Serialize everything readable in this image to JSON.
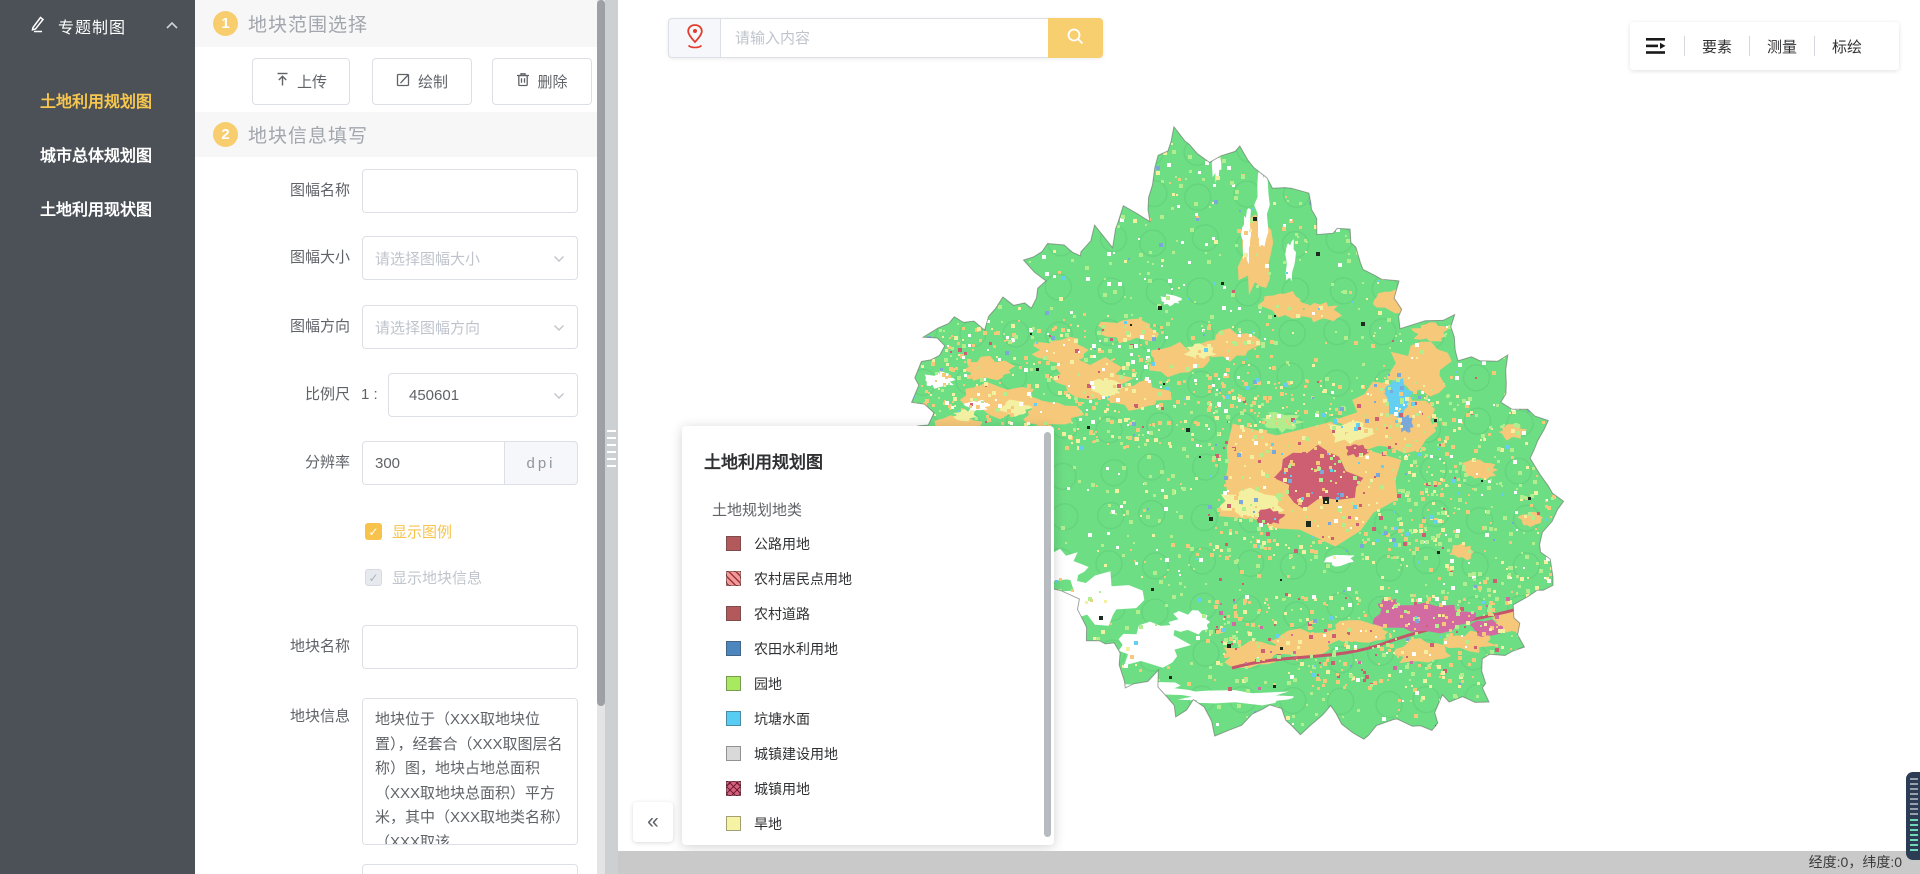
{
  "sidebar": {
    "title": "专题制图",
    "items": [
      {
        "label": "土地利用规划图",
        "active": true
      },
      {
        "label": "城市总体规划图",
        "active": false
      },
      {
        "label": "土地利用现状图",
        "active": false
      }
    ]
  },
  "panel": {
    "sections": [
      {
        "number": "1",
        "title": "地块范围选择"
      },
      {
        "number": "2",
        "title": "地块信息填写"
      }
    ],
    "buttons": {
      "upload": "上传",
      "draw": "绘制",
      "delete": "删除"
    },
    "fields": {
      "sheet_name_label": "图幅名称",
      "sheet_size_label": "图幅大小",
      "sheet_size_placeholder": "请选择图幅大小",
      "sheet_orientation_label": "图幅方向",
      "sheet_orientation_placeholder": "请选择图幅方向",
      "scale_label": "比例尺",
      "scale_prefix": "1 :",
      "scale_value": "450601",
      "resolution_label": "分辨率",
      "resolution_value": "300",
      "resolution_unit": "dpi",
      "show_legend_label": "显示图例",
      "show_parcel_info_label": "显示地块信息",
      "parcel_name_label": "地块名称",
      "parcel_info_label": "地块信息",
      "parcel_info_value": "地块位于（XXX取地块位置），经套合（XXX取图层名称）图，地块占地总面积（XXX取地块总面积）平方米，其中（XXX取地类名称）（XXX取该"
    }
  },
  "map": {
    "search": {
      "placeholder": "请输入内容"
    },
    "toolbar": [
      "要素",
      "测量",
      "标绘"
    ],
    "legend": {
      "title": "土地利用规划图",
      "subtitle": "土地规划地类",
      "items": [
        {
          "label": "公路用地",
          "color": "#b3595c",
          "pattern": "solid"
        },
        {
          "label": "农村居民点用地",
          "color": "#f09b9b",
          "pattern": "diagonal"
        },
        {
          "label": "农村道路",
          "color": "#b3595c",
          "pattern": "solid"
        },
        {
          "label": "农田水利用地",
          "color": "#4c86be",
          "pattern": "solid"
        },
        {
          "label": "园地",
          "color": "#a8e960",
          "pattern": "solid"
        },
        {
          "label": "坑塘水面",
          "color": "#58cdf4",
          "pattern": "solid"
        },
        {
          "label": "城镇建设用地",
          "color": "#d9d9d9",
          "pattern": "solid"
        },
        {
          "label": "城镇用地",
          "color": "#d75f7f",
          "pattern": "cross"
        },
        {
          "label": "旱地",
          "color": "#f6f3a4",
          "pattern": "solid"
        }
      ]
    },
    "collapse_button": "«",
    "statusbar": "经度:0，纬度:0",
    "map_colors": {
      "base_green": "#6ede85",
      "orange": "#f6c87a",
      "pale_yellow": "#f4f0a1",
      "light_green": "#b2ee8e",
      "cyan": "#64cff1",
      "blue": "#7ba8da",
      "rose": "#ce5f73",
      "magenta": "#d36ba3",
      "brick": "#b3595c",
      "white": "#ffffff",
      "dark": "#1e2a1e"
    }
  },
  "colors": {
    "accent_yellow": "#f8cd6e",
    "sidebar_bg": "#4b5157",
    "active_item_yellow": "#f6c64f",
    "statusbar_gray": "#c9c9c9"
  }
}
